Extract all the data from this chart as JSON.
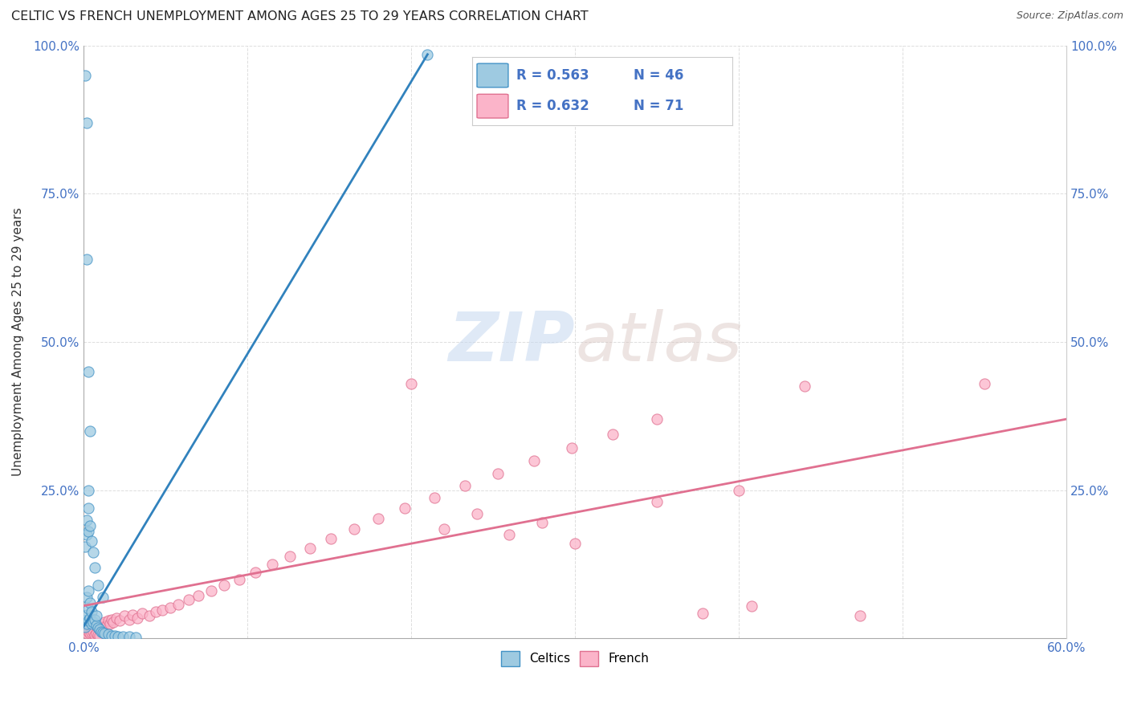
{
  "title": "CELTIC VS FRENCH UNEMPLOYMENT AMONG AGES 25 TO 29 YEARS CORRELATION CHART",
  "source": "Source: ZipAtlas.com",
  "ylabel": "Unemployment Among Ages 25 to 29 years",
  "xlim": [
    0.0,
    0.6
  ],
  "ylim": [
    0.0,
    1.0
  ],
  "x_tick_pos": [
    0.0,
    0.1,
    0.2,
    0.3,
    0.4,
    0.5,
    0.6
  ],
  "y_tick_pos": [
    0.0,
    0.25,
    0.5,
    0.75,
    1.0
  ],
  "color_celtics": "#9ecae1",
  "color_celtics_edge": "#4292c6",
  "color_french": "#fbb4c9",
  "color_french_edge": "#e07090",
  "color_celtics_line": "#3182bd",
  "color_french_line": "#e07090",
  "legend_r_celtics": "R = 0.563",
  "legend_n_celtics": "N = 46",
  "legend_r_french": "R = 0.632",
  "legend_n_french": "N = 71",
  "celtics_line_x0": 0.0,
  "celtics_line_y0": 0.02,
  "celtics_line_x1": 0.21,
  "celtics_line_y1": 0.985,
  "french_line_x0": 0.0,
  "french_line_y0": 0.055,
  "french_line_x1": 0.6,
  "french_line_y1": 0.37,
  "celtics_x": [
    0.001,
    0.001,
    0.002,
    0.002,
    0.002,
    0.003,
    0.003,
    0.003,
    0.004,
    0.004,
    0.005,
    0.005,
    0.006,
    0.007,
    0.008,
    0.008,
    0.009,
    0.01,
    0.011,
    0.012,
    0.013,
    0.015,
    0.017,
    0.019,
    0.021,
    0.024,
    0.028,
    0.032,
    0.001,
    0.002,
    0.002,
    0.003,
    0.003,
    0.003,
    0.004,
    0.005,
    0.006,
    0.007,
    0.009,
    0.012,
    0.002,
    0.002,
    0.003,
    0.004,
    0.21,
    0.001
  ],
  "celtics_y": [
    0.02,
    0.03,
    0.025,
    0.04,
    0.07,
    0.03,
    0.05,
    0.08,
    0.035,
    0.06,
    0.025,
    0.045,
    0.028,
    0.032,
    0.022,
    0.038,
    0.018,
    0.015,
    0.012,
    0.01,
    0.008,
    0.007,
    0.005,
    0.004,
    0.003,
    0.003,
    0.003,
    0.002,
    0.155,
    0.175,
    0.2,
    0.18,
    0.22,
    0.25,
    0.19,
    0.165,
    0.145,
    0.12,
    0.09,
    0.07,
    0.87,
    0.64,
    0.45,
    0.35,
    0.985,
    0.95
  ],
  "french_x": [
    0.002,
    0.003,
    0.004,
    0.005,
    0.006,
    0.007,
    0.008,
    0.009,
    0.01,
    0.011,
    0.012,
    0.013,
    0.014,
    0.015,
    0.016,
    0.017,
    0.018,
    0.02,
    0.022,
    0.025,
    0.028,
    0.03,
    0.033,
    0.036,
    0.04,
    0.044,
    0.048,
    0.053,
    0.058,
    0.064,
    0.07,
    0.078,
    0.086,
    0.095,
    0.105,
    0.115,
    0.126,
    0.138,
    0.151,
    0.165,
    0.18,
    0.196,
    0.214,
    0.233,
    0.253,
    0.275,
    0.298,
    0.323,
    0.35,
    0.378,
    0.408,
    0.44,
    0.474,
    0.002,
    0.003,
    0.004,
    0.005,
    0.006,
    0.007,
    0.008,
    0.009,
    0.01,
    0.2,
    0.22,
    0.24,
    0.26,
    0.28,
    0.3,
    0.35,
    0.4,
    0.55
  ],
  "french_y": [
    0.01,
    0.015,
    0.012,
    0.018,
    0.014,
    0.02,
    0.016,
    0.022,
    0.018,
    0.025,
    0.02,
    0.028,
    0.022,
    0.03,
    0.025,
    0.032,
    0.028,
    0.035,
    0.03,
    0.038,
    0.032,
    0.04,
    0.035,
    0.042,
    0.038,
    0.045,
    0.048,
    0.052,
    0.058,
    0.065,
    0.072,
    0.08,
    0.09,
    0.1,
    0.112,
    0.125,
    0.138,
    0.152,
    0.168,
    0.185,
    0.202,
    0.22,
    0.238,
    0.258,
    0.278,
    0.3,
    0.322,
    0.345,
    0.37,
    0.042,
    0.055,
    0.425,
    0.038,
    0.008,
    0.012,
    0.008,
    0.01,
    0.012,
    0.006,
    0.008,
    0.006,
    0.005,
    0.43,
    0.185,
    0.21,
    0.175,
    0.195,
    0.16,
    0.23,
    0.25,
    0.43
  ]
}
